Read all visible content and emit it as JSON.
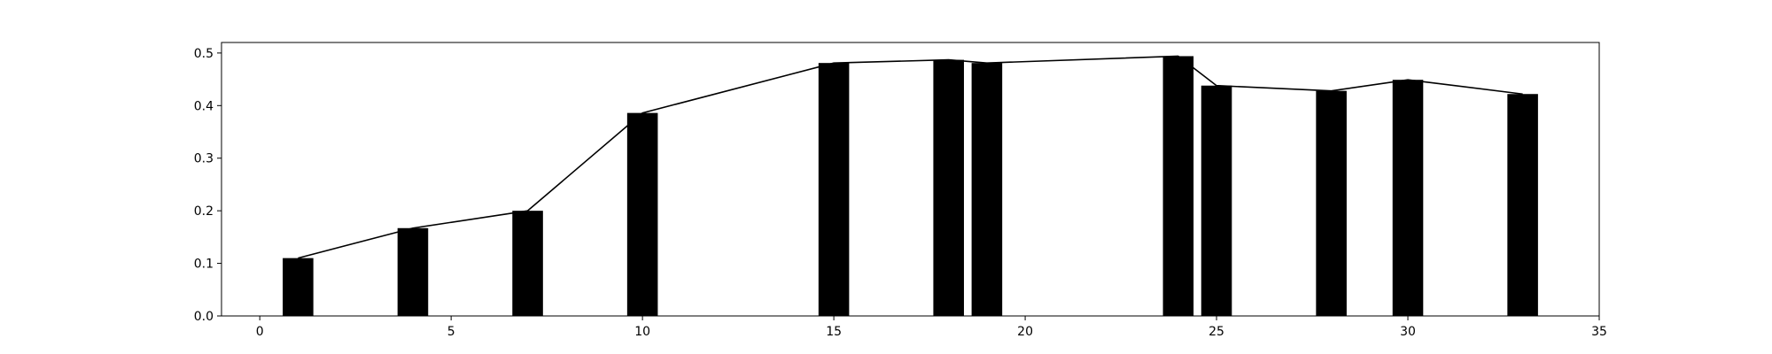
{
  "chart_data": {
    "type": "bar",
    "title": "",
    "xlabel": "",
    "ylabel": "",
    "xlim": [
      -1,
      35
    ],
    "ylim": [
      0,
      0.52
    ],
    "grid": false,
    "legend": "none",
    "xticks": [
      0,
      5,
      10,
      15,
      20,
      25,
      30,
      35
    ],
    "xtick_labels": [
      "0",
      "5",
      "10",
      "15",
      "20",
      "25",
      "30",
      "35"
    ],
    "yticks": [
      0.0,
      0.1,
      0.2,
      0.3,
      0.4,
      0.5
    ],
    "ytick_labels": [
      "0.0",
      "0.1",
      "0.2",
      "0.3",
      "0.4",
      "0.5"
    ],
    "bar_width": 0.8,
    "series": [
      {
        "type": "bar",
        "color": "#000000",
        "x": [
          1,
          4,
          7,
          10,
          15,
          18,
          19,
          24,
          25,
          28,
          30,
          33
        ],
        "values": [
          0.11,
          0.167,
          0.2,
          0.386,
          0.481,
          0.487,
          0.481,
          0.494,
          0.438,
          0.428,
          0.449,
          0.422
        ]
      },
      {
        "type": "line",
        "color": "#000000",
        "x": [
          1,
          4,
          7,
          10,
          15,
          18,
          19,
          24,
          25,
          28,
          30,
          33
        ],
        "values": [
          0.11,
          0.167,
          0.2,
          0.386,
          0.481,
          0.487,
          0.481,
          0.494,
          0.438,
          0.428,
          0.449,
          0.422
        ]
      }
    ]
  }
}
